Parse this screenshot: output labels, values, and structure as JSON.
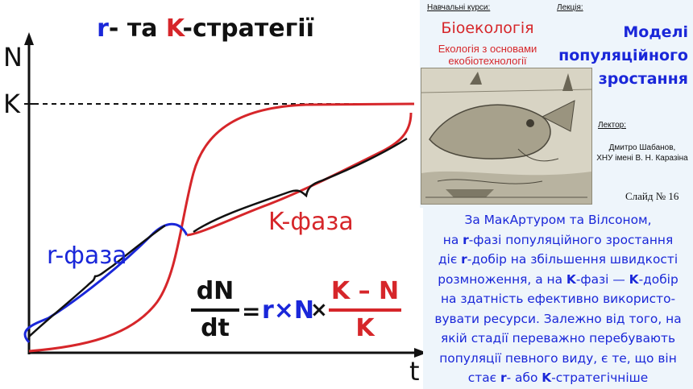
{
  "slide": {
    "title_part1": "r",
    "title_part2": "- та ",
    "title_part3": "K",
    "title_part4": "-стратегії"
  },
  "diagram": {
    "y_axis_label": "N",
    "x_axis_label": "t",
    "k_level_label": "K",
    "r_phase_label": "r-фаза",
    "k_phase_label": "K-фаза",
    "r_curve_color": "#1a27d9",
    "k_curve_color": "#d6262a"
  },
  "formula": {
    "lhs_numerator": "dN",
    "lhs_denominator": "dt",
    "equals": "=",
    "rN": "r×N",
    "times": "×",
    "rhs_numerator": "K – N",
    "rhs_denominator": "K"
  },
  "panel": {
    "courses_label": "Навчальні курси:",
    "lecture_label": "Лекція:",
    "course_name": "Біоекологія",
    "course_subtitle": "Екологія з основами екобіотехнології",
    "lecture_title": "Моделі популяційного зростання",
    "lecturer_label": "Лектор:",
    "lecturer_name": "Дмитро Шабанов,",
    "lecturer_affiliation": "ХНУ імені В. Н. Каразіна",
    "slide_number": "Слайд № 16"
  },
  "explanation": {
    "l1": "За МакАртуром та Вілсоном,",
    "l2a": "на ",
    "l2b": "r",
    "l2c": "-фазі популяційного зростання",
    "l3a": "діє ",
    "l3b": "r",
    "l3c": "-добір на збільшення швидкості",
    "l4a": "розмноження, а на ",
    "l4b": "K",
    "l4c": "-фазі —  ",
    "l4d": "K",
    "l4e": "-добір",
    "l5": "на здатність ефективно використо-",
    "l6": "вувати ресурси. Залежно від того, на",
    "l7": "якій стадії переважно перебувають",
    "l8": "популяції певного виду, є те, що він",
    "l9a": "стає ",
    "l9b": "r",
    "l9c": "- або ",
    "l9d": "K",
    "l9e": "-стратегічніше"
  },
  "colors": {
    "accent_blue": "#1a27d9",
    "accent_red": "#d6262a",
    "panel_bg": "#eef5fb"
  }
}
